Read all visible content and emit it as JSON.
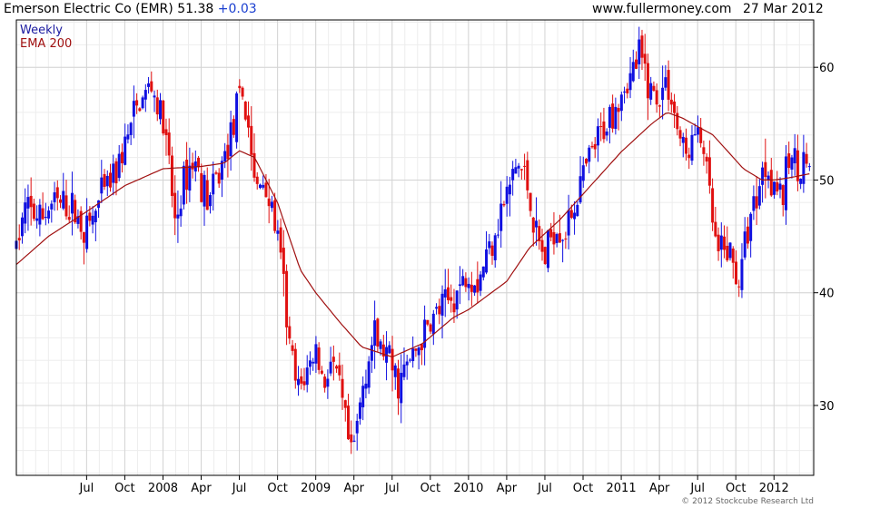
{
  "header": {
    "instrument": "Emerson Electric Co (EMR)",
    "last": "51.38",
    "change": "+0.03",
    "site": "www.fullermoney.com",
    "date": "27 Mar 2012"
  },
  "copyright": "© 2012 Stockcube Research Ltd",
  "colors": {
    "up": "#1010e0",
    "down": "#e01010",
    "ema": "#a01010",
    "grid": "#d4d4d4",
    "legend_weekly": "#1a1aa0",
    "legend_ema": "#a01010"
  },
  "chart_data": {
    "type": "candlestick",
    "legend": [
      {
        "label": "Weekly"
      },
      {
        "label": "EMA 200"
      }
    ],
    "x_ticks": [
      {
        "t": 2007.5,
        "label": "Jul"
      },
      {
        "t": 2007.75,
        "label": "Oct"
      },
      {
        "t": 2008.0,
        "label": "2008"
      },
      {
        "t": 2008.25,
        "label": "Apr"
      },
      {
        "t": 2008.5,
        "label": "Jul"
      },
      {
        "t": 2008.75,
        "label": "Oct"
      },
      {
        "t": 2009.0,
        "label": "2009"
      },
      {
        "t": 2009.25,
        "label": "Apr"
      },
      {
        "t": 2009.5,
        "label": "Jul"
      },
      {
        "t": 2009.75,
        "label": "Oct"
      },
      {
        "t": 2010.0,
        "label": "2010"
      },
      {
        "t": 2010.25,
        "label": "Apr"
      },
      {
        "t": 2010.5,
        "label": "Jul"
      },
      {
        "t": 2010.75,
        "label": "Oct"
      },
      {
        "t": 2011.0,
        "label": "2011"
      },
      {
        "t": 2011.25,
        "label": "Apr"
      },
      {
        "t": 2011.5,
        "label": "Jul"
      },
      {
        "t": 2011.75,
        "label": "Oct"
      },
      {
        "t": 2012.0,
        "label": "2012"
      }
    ],
    "y_ticks": [
      30,
      40,
      50,
      60
    ],
    "xlim": [
      2007.04,
      2012.26
    ],
    "ylim": [
      23.8,
      64.2
    ],
    "anchors": [
      [
        2007.04,
        44
      ],
      [
        2007.1,
        47.5
      ],
      [
        2007.2,
        46.5
      ],
      [
        2007.28,
        48
      ],
      [
        2007.4,
        47.5
      ],
      [
        2007.5,
        45.5
      ],
      [
        2007.6,
        48.5
      ],
      [
        2007.7,
        51
      ],
      [
        2007.82,
        56
      ],
      [
        2007.92,
        58.5
      ],
      [
        2008.0,
        55
      ],
      [
        2008.04,
        51
      ],
      [
        2008.08,
        46
      ],
      [
        2008.14,
        50
      ],
      [
        2008.2,
        52
      ],
      [
        2008.3,
        48
      ],
      [
        2008.38,
        51
      ],
      [
        2008.46,
        55
      ],
      [
        2008.52,
        57.5
      ],
      [
        2008.57,
        54
      ],
      [
        2008.6,
        49
      ],
      [
        2008.66,
        50
      ],
      [
        2008.72,
        47
      ],
      [
        2008.78,
        42
      ],
      [
        2008.82,
        36
      ],
      [
        2008.88,
        31
      ],
      [
        2008.94,
        33
      ],
      [
        2009.0,
        35
      ],
      [
        2009.05,
        32
      ],
      [
        2009.1,
        34
      ],
      [
        2009.16,
        31
      ],
      [
        2009.2,
        28
      ],
      [
        2009.23,
        25
      ],
      [
        2009.27,
        28
      ],
      [
        2009.32,
        33
      ],
      [
        2009.38,
        36
      ],
      [
        2009.46,
        34.5
      ],
      [
        2009.54,
        32
      ],
      [
        2009.62,
        34
      ],
      [
        2009.7,
        36
      ],
      [
        2009.78,
        38
      ],
      [
        2009.86,
        39
      ],
      [
        2009.92,
        40
      ],
      [
        2010.0,
        42
      ],
      [
        2010.06,
        41
      ],
      [
        2010.12,
        43.5
      ],
      [
        2010.18,
        46
      ],
      [
        2010.26,
        49
      ],
      [
        2010.32,
        51.5
      ],
      [
        2010.38,
        50
      ],
      [
        2010.44,
        45
      ],
      [
        2010.5,
        43
      ],
      [
        2010.56,
        46
      ],
      [
        2010.64,
        45.5
      ],
      [
        2010.72,
        49
      ],
      [
        2010.8,
        52
      ],
      [
        2010.9,
        55
      ],
      [
        2011.0,
        58
      ],
      [
        2011.06,
        59
      ],
      [
        2011.12,
        61
      ],
      [
        2011.18,
        58.5
      ],
      [
        2011.24,
        57
      ],
      [
        2011.3,
        59
      ],
      [
        2011.36,
        55
      ],
      [
        2011.42,
        52
      ],
      [
        2011.48,
        54
      ],
      [
        2011.54,
        53
      ],
      [
        2011.58,
        48
      ],
      [
        2011.63,
        43
      ],
      [
        2011.7,
        44
      ],
      [
        2011.74,
        42
      ],
      [
        2011.78,
        41
      ],
      [
        2011.82,
        45.5
      ],
      [
        2011.88,
        48.5
      ],
      [
        2011.94,
        51.5
      ],
      [
        2012.0,
        50
      ],
      [
        2012.06,
        48.5
      ],
      [
        2012.1,
        52
      ],
      [
        2012.16,
        51.5
      ],
      [
        2012.22,
        51.5
      ],
      [
        2012.25,
        51.4
      ]
    ],
    "ema_points": [
      [
        2007.04,
        42.5
      ],
      [
        2007.25,
        45
      ],
      [
        2007.5,
        47.2
      ],
      [
        2007.75,
        49.5
      ],
      [
        2008.0,
        51
      ],
      [
        2008.25,
        51.2
      ],
      [
        2008.4,
        51.5
      ],
      [
        2008.5,
        52.6
      ],
      [
        2008.6,
        52
      ],
      [
        2008.75,
        48
      ],
      [
        2008.9,
        42
      ],
      [
        2009.0,
        40
      ],
      [
        2009.15,
        37.5
      ],
      [
        2009.3,
        35.2
      ],
      [
        2009.5,
        34.3
      ],
      [
        2009.7,
        35.5
      ],
      [
        2009.9,
        37.8
      ],
      [
        2010.0,
        38.5
      ],
      [
        2010.25,
        41
      ],
      [
        2010.4,
        44
      ],
      [
        2010.6,
        46.5
      ],
      [
        2010.8,
        49.5
      ],
      [
        2011.0,
        52.5
      ],
      [
        2011.2,
        55
      ],
      [
        2011.3,
        56
      ],
      [
        2011.4,
        55.5
      ],
      [
        2011.6,
        54
      ],
      [
        2011.8,
        51
      ],
      [
        2011.92,
        50
      ],
      [
        2012.0,
        50
      ],
      [
        2012.1,
        50.2
      ],
      [
        2012.25,
        50.6
      ]
    ]
  }
}
